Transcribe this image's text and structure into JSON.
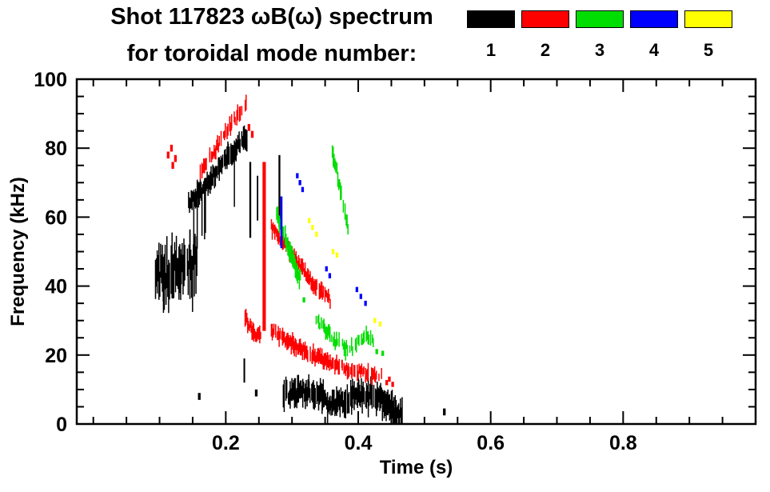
{
  "chart_data": {
    "type": "scatter",
    "title": "Shot 117823 ωB(ω) spectrum",
    "subtitle": "for toroidal mode number:",
    "xlabel": "Time (s)",
    "ylabel": "Frequency (kHz)",
    "xlim": [
      -0.025,
      1.0
    ],
    "ylim": [
      0,
      100
    ],
    "xticks": [
      0.2,
      0.4,
      0.6,
      0.8
    ],
    "xtick_labels": [
      "0.2",
      "0.4",
      "0.6",
      "0.8"
    ],
    "xtick_minor": 0.05,
    "yticks": [
      0,
      20,
      40,
      60,
      80,
      100
    ],
    "ytick_labels": [
      "0",
      "20",
      "40",
      "60",
      "80",
      "100"
    ],
    "ytick_minor": 5,
    "grid": false,
    "legend_position": "top-right",
    "legend": [
      {
        "label": "1",
        "color": "#000000"
      },
      {
        "label": "2",
        "color": "#ff0000"
      },
      {
        "label": "3",
        "color": "#00dd00"
      },
      {
        "label": "4",
        "color": "#0000ff"
      },
      {
        "label": "5",
        "color": "#ffff00"
      }
    ],
    "series": [
      {
        "name": "1",
        "color": "#000000",
        "elements": [
          {
            "kind": "band",
            "pts": [
              [
                0.093,
                45
              ],
              [
                0.105,
                43
              ],
              [
                0.118,
                46
              ],
              [
                0.132,
                44
              ],
              [
                0.145,
                45
              ],
              [
                0.156,
                46
              ]
            ],
            "hw": 6,
            "jitter": 5,
            "gap": 0.08,
            "tail": {
              "prob": 0.12,
              "len": 7,
              "dir": -1
            }
          },
          {
            "kind": "band",
            "pts": [
              [
                0.143,
                64
              ],
              [
                0.158,
                67
              ],
              [
                0.173,
                70
              ],
              [
                0.188,
                74
              ],
              [
                0.203,
                78
              ],
              [
                0.218,
                81
              ],
              [
                0.232,
                83
              ]
            ],
            "hw": 2.4,
            "jitter": 1.2,
            "gap": 0.05,
            "tail": {
              "prob": 0.1,
              "len": 15,
              "dir": -1
            }
          },
          {
            "kind": "vline",
            "t": 0.237,
            "f0": 54,
            "f1": 76,
            "w": 0.0028
          },
          {
            "kind": "vline",
            "t": 0.248,
            "f0": 59,
            "f1": 72,
            "w": 0.0022
          },
          {
            "kind": "vline",
            "t": 0.281,
            "f0": 57,
            "f1": 78,
            "w": 0.0028
          },
          {
            "kind": "vline",
            "t": 0.228,
            "f0": 12,
            "f1": 19,
            "w": 0.0025
          },
          {
            "kind": "band",
            "pts": [
              [
                0.286,
                9
              ],
              [
                0.305,
                8.5
              ],
              [
                0.325,
                9.5
              ],
              [
                0.345,
                8
              ],
              [
                0.36,
                5.5
              ],
              [
                0.38,
                7
              ],
              [
                0.4,
                8.5
              ],
              [
                0.42,
                8.5
              ],
              [
                0.44,
                6
              ],
              [
                0.455,
                4
              ],
              [
                0.468,
                3
              ]
            ],
            "hw": 3,
            "jitter": 1.6,
            "gap": 0.05,
            "tail": {
              "prob": 0.06,
              "len": 4,
              "dir": -1
            }
          },
          {
            "kind": "dots",
            "pts": [
              [
                0.16,
                8
              ],
              [
                0.246,
                9
              ],
              [
                0.53,
                3.5
              ]
            ],
            "w": 0.004,
            "h": 2
          }
        ]
      },
      {
        "name": "2",
        "color": "#ff0000",
        "elements": [
          {
            "kind": "dots",
            "pts": [
              [
                0.113,
                78
              ],
              [
                0.118,
                80
              ],
              [
                0.124,
                77
              ],
              [
                0.12,
                75
              ]
            ],
            "w": 0.004,
            "h": 2
          },
          {
            "kind": "band",
            "pts": [
              [
                0.158,
                72
              ],
              [
                0.175,
                77
              ],
              [
                0.192,
                82
              ],
              [
                0.208,
                87
              ],
              [
                0.222,
                91
              ],
              [
                0.23,
                93
              ]
            ],
            "hw": 1.6,
            "jitter": 1.2,
            "gap": 0.38
          },
          {
            "kind": "dots",
            "pts": [
              [
                0.235,
                86
              ],
              [
                0.24,
                84
              ]
            ],
            "w": 0.004,
            "h": 2
          },
          {
            "kind": "vline",
            "t": 0.258,
            "f0": 27,
            "f1": 76,
            "w": 0.005
          },
          {
            "kind": "band",
            "pts": [
              [
                0.268,
                57
              ],
              [
                0.285,
                53
              ],
              [
                0.3,
                49
              ],
              [
                0.315,
                45
              ],
              [
                0.33,
                41
              ],
              [
                0.345,
                38
              ],
              [
                0.358,
                35.5
              ]
            ],
            "hw": 1.7,
            "jitter": 1,
            "gap": 0.12
          },
          {
            "kind": "band",
            "pts": [
              [
                0.227,
                31
              ],
              [
                0.24,
                27
              ],
              [
                0.252,
                25
              ]
            ],
            "hw": 1.8,
            "jitter": 1.1,
            "gap": 0.15
          },
          {
            "kind": "band",
            "pts": [
              [
                0.268,
                27
              ],
              [
                0.285,
                25
              ],
              [
                0.3,
                23
              ],
              [
                0.315,
                21.5
              ],
              [
                0.33,
                20
              ],
              [
                0.345,
                19
              ],
              [
                0.36,
                17.5
              ],
              [
                0.375,
                16.5
              ],
              [
                0.39,
                15.5
              ],
              [
                0.405,
                15
              ],
              [
                0.42,
                14.5
              ],
              [
                0.435,
                14
              ]
            ],
            "hw": 1.8,
            "jitter": 1.1,
            "gap": 0.18
          },
          {
            "kind": "dots",
            "pts": [
              [
                0.443,
                12
              ],
              [
                0.447,
                13
              ],
              [
                0.452,
                11.5
              ]
            ],
            "w": 0.004,
            "h": 1.5
          }
        ]
      },
      {
        "name": "3",
        "color": "#00dd00",
        "elements": [
          {
            "kind": "band",
            "pts": [
              [
                0.276,
                61
              ],
              [
                0.285,
                56
              ],
              [
                0.295,
                50
              ],
              [
                0.305,
                45
              ],
              [
                0.315,
                41.5
              ]
            ],
            "hw": 2.2,
            "jitter": 1.2,
            "gap": 0.1
          },
          {
            "kind": "band",
            "pts": [
              [
                0.36,
                79
              ],
              [
                0.367,
                73
              ],
              [
                0.374,
                66
              ],
              [
                0.381,
                59
              ],
              [
                0.386,
                55
              ]
            ],
            "hw": 2.2,
            "jitter": 1.2,
            "gap": 0.08
          },
          {
            "kind": "band",
            "pts": [
              [
                0.333,
                30
              ],
              [
                0.35,
                27
              ],
              [
                0.365,
                24
              ],
              [
                0.38,
                22
              ],
              [
                0.395,
                22.5
              ],
              [
                0.41,
                25
              ],
              [
                0.422,
                24
              ]
            ],
            "hw": 1.6,
            "jitter": 1.4,
            "gap": 0.35
          },
          {
            "kind": "dots",
            "pts": [
              [
                0.318,
                36
              ],
              [
                0.428,
                21
              ],
              [
                0.437,
                20.5
              ]
            ],
            "w": 0.004,
            "h": 1.5
          }
        ]
      },
      {
        "name": "4",
        "color": "#0000ff",
        "elements": [
          {
            "kind": "vline",
            "t": 0.284,
            "f0": 51,
            "f1": 66,
            "w": 0.0032
          },
          {
            "kind": "dots",
            "pts": [
              [
                0.308,
                72
              ],
              [
                0.312,
                70
              ],
              [
                0.316,
                68
              ]
            ],
            "w": 0.004,
            "h": 1.5
          },
          {
            "kind": "dots",
            "pts": [
              [
                0.352,
                45
              ],
              [
                0.357,
                43
              ]
            ],
            "w": 0.004,
            "h": 1.5
          },
          {
            "kind": "dots",
            "pts": [
              [
                0.398,
                39
              ],
              [
                0.404,
                37
              ],
              [
                0.411,
                35
              ]
            ],
            "w": 0.004,
            "h": 1.5
          }
        ]
      },
      {
        "name": "5",
        "color": "#ffff00",
        "elements": [
          {
            "kind": "dots",
            "pts": [
              [
                0.326,
                59
              ],
              [
                0.331,
                57
              ],
              [
                0.337,
                55
              ]
            ],
            "w": 0.004,
            "h": 1.5
          },
          {
            "kind": "dots",
            "pts": [
              [
                0.362,
                50
              ],
              [
                0.368,
                49
              ]
            ],
            "w": 0.004,
            "h": 1.5
          },
          {
            "kind": "dots",
            "pts": [
              [
                0.425,
                30
              ],
              [
                0.433,
                29
              ]
            ],
            "w": 0.004,
            "h": 1.5
          }
        ]
      }
    ]
  }
}
